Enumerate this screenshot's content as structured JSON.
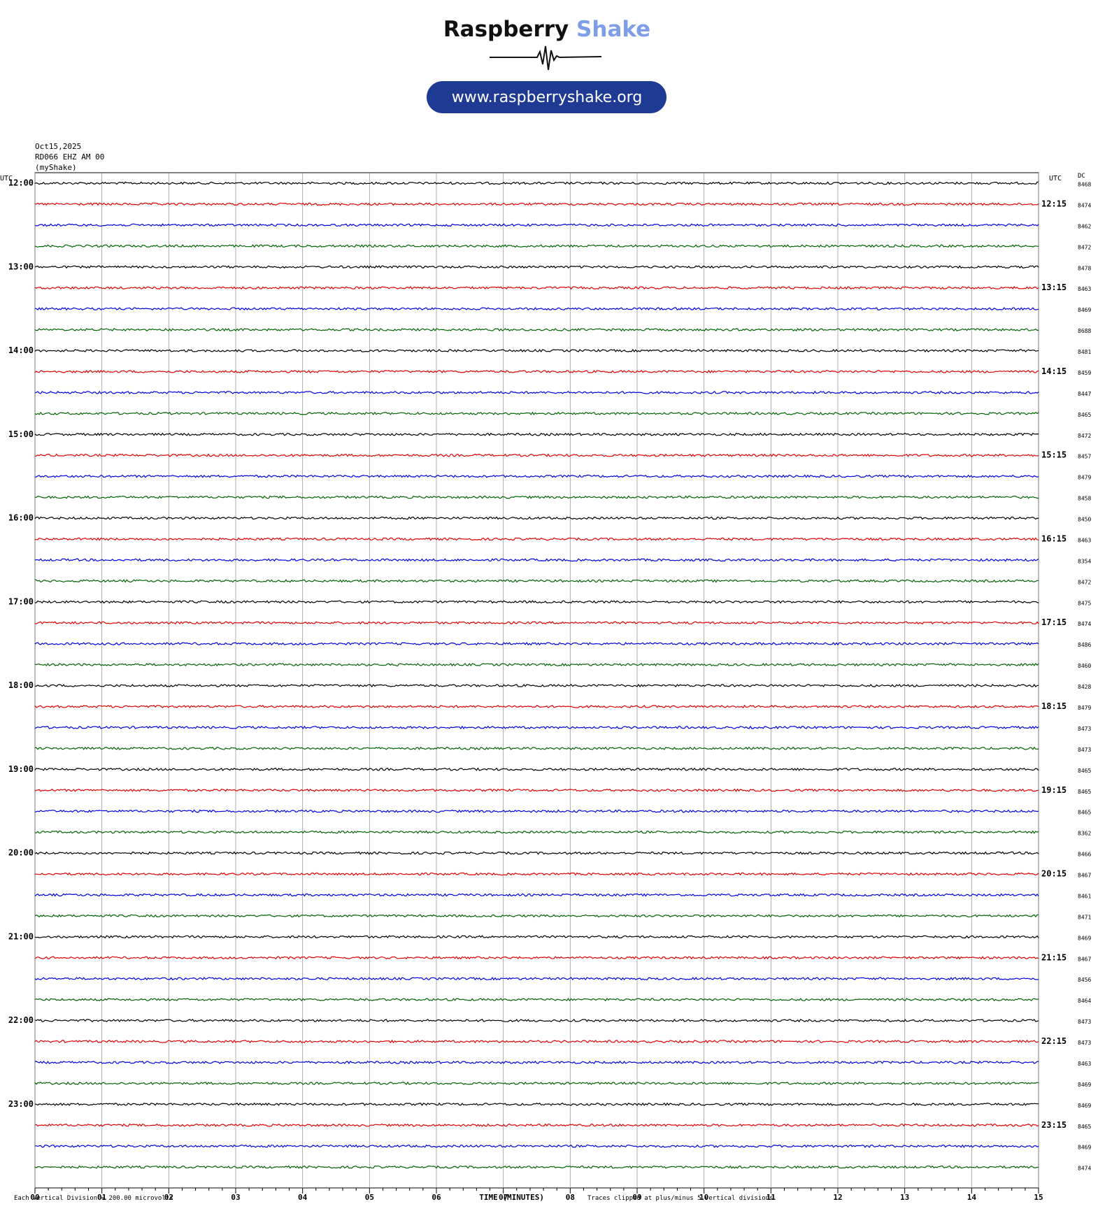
{
  "header": {
    "brand": "Raspberry",
    "brand_accent": "Shake",
    "url": "www.raspberryshake.org"
  },
  "chart_data": {
    "type": "helicorder",
    "date": "Oct15,2025",
    "station": "RD066 EHZ AM 00",
    "source": "(myShake)",
    "left_unit": "UTC",
    "right_unit": "UTC",
    "dc_header": "DC",
    "left_labels": [
      "12:00",
      "13:00",
      "14:00",
      "15:00",
      "16:00",
      "17:00",
      "18:00",
      "19:00",
      "20:00",
      "21:00",
      "22:00",
      "23:00"
    ],
    "right_labels": [
      "12:15",
      "13:15",
      "14:15",
      "15:15",
      "16:15",
      "17:15",
      "18:15",
      "19:15",
      "20:15",
      "21:15",
      "22:15",
      "23:15"
    ],
    "colors": [
      "#000000",
      "#e00000",
      "#0000e0",
      "#006400"
    ],
    "dc": [
      8468,
      8474,
      8462,
      8472,
      8478,
      8463,
      8469,
      8688,
      8481,
      8459,
      8447,
      8465,
      8472,
      8457,
      8479,
      8458,
      8450,
      8463,
      8354,
      8472,
      8475,
      8474,
      8486,
      8460,
      8428,
      8479,
      8473,
      8473,
      8465,
      8465,
      8465,
      8362,
      8466,
      8467,
      8461,
      8471,
      8469,
      8467,
      8456,
      8464,
      8473,
      8473,
      8463,
      8469,
      8469,
      8465,
      8469,
      8474
    ],
    "xlim": [
      0,
      15
    ],
    "xticks": [
      {
        "value": 0,
        "label": "00"
      },
      {
        "value": 1,
        "label": "01"
      },
      {
        "value": 2,
        "label": "02"
      },
      {
        "value": 3,
        "label": "03"
      },
      {
        "value": 4,
        "label": "04"
      },
      {
        "value": 5,
        "label": "05"
      },
      {
        "value": 6,
        "label": "06"
      },
      {
        "value": 7,
        "label": "07"
      },
      {
        "value": 8,
        "label": "08"
      },
      {
        "value": 9,
        "label": "09"
      },
      {
        "value": 10,
        "label": "10"
      },
      {
        "value": 11,
        "label": "11"
      },
      {
        "value": 12,
        "label": "12"
      },
      {
        "value": 13,
        "label": "13"
      },
      {
        "value": 14,
        "label": "14"
      },
      {
        "value": 15,
        "label": "15"
      }
    ],
    "x_label": "TIME (MINUTES)",
    "scale_note": "Each Vertical Division =  200.00 microvolts",
    "clip_note": "Traces clipped at plus/minus 5 vertical divisions"
  }
}
